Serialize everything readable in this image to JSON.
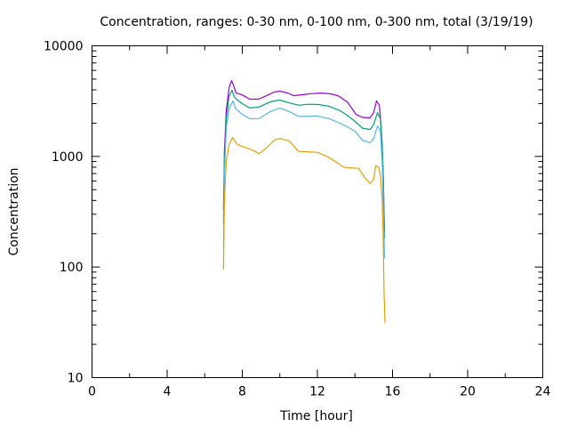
{
  "chart_data": {
    "type": "line",
    "title": "Concentration, ranges: 0-30 nm, 0-100 nm, 0-300 nm, total (3/19/19)",
    "xlabel": "Time [hour]",
    "ylabel": "Concentration",
    "xlim": [
      0,
      24
    ],
    "ylim": [
      10,
      10000
    ],
    "yscale": "log",
    "xticks": [
      "0",
      "4",
      "8",
      "12",
      "16",
      "20",
      "24"
    ],
    "yticks": [
      "10",
      "100",
      "1000",
      "10000"
    ],
    "grid": false,
    "legend": "none",
    "series": [
      {
        "name": "total",
        "color": "#9400d3",
        "points": [
          [
            7.0,
            330
          ],
          [
            7.05,
            1100
          ],
          [
            7.15,
            2600
          ],
          [
            7.3,
            4200
          ],
          [
            7.43,
            4850
          ],
          [
            7.55,
            4300
          ],
          [
            7.67,
            3740
          ],
          [
            8.0,
            3600
          ],
          [
            8.4,
            3290
          ],
          [
            8.85,
            3290
          ],
          [
            9.3,
            3550
          ],
          [
            9.7,
            3820
          ],
          [
            10.0,
            3890
          ],
          [
            10.4,
            3750
          ],
          [
            10.75,
            3540
          ],
          [
            11.2,
            3610
          ],
          [
            11.7,
            3700
          ],
          [
            12.2,
            3740
          ],
          [
            12.7,
            3680
          ],
          [
            13.1,
            3540
          ],
          [
            13.6,
            3100
          ],
          [
            14.06,
            2400
          ],
          [
            14.4,
            2250
          ],
          [
            14.8,
            2230
          ],
          [
            15.0,
            2500
          ],
          [
            15.15,
            3180
          ],
          [
            15.3,
            2900
          ],
          [
            15.4,
            1800
          ],
          [
            15.5,
            762
          ],
          [
            15.57,
            210
          ]
        ]
      },
      {
        "name": "0-300 nm",
        "color": "#009e73",
        "points": [
          [
            7.0,
            250
          ],
          [
            7.05,
            900
          ],
          [
            7.15,
            2200
          ],
          [
            7.3,
            3500
          ],
          [
            7.45,
            3960
          ],
          [
            7.6,
            3400
          ],
          [
            8.0,
            3000
          ],
          [
            8.4,
            2740
          ],
          [
            8.9,
            2800
          ],
          [
            9.5,
            3120
          ],
          [
            10.0,
            3230
          ],
          [
            10.5,
            3050
          ],
          [
            11.0,
            2900
          ],
          [
            11.5,
            2960
          ],
          [
            12.0,
            2950
          ],
          [
            12.6,
            2850
          ],
          [
            13.2,
            2600
          ],
          [
            13.6,
            2350
          ],
          [
            14.0,
            2070
          ],
          [
            14.4,
            1800
          ],
          [
            14.8,
            1750
          ],
          [
            15.0,
            1950
          ],
          [
            15.2,
            2490
          ],
          [
            15.35,
            2200
          ],
          [
            15.45,
            1300
          ],
          [
            15.52,
            500
          ],
          [
            15.57,
            180
          ]
        ]
      },
      {
        "name": "0-100 nm",
        "color": "#56b4e9",
        "points": [
          [
            7.0,
            150
          ],
          [
            7.05,
            700
          ],
          [
            7.15,
            1800
          ],
          [
            7.3,
            2700
          ],
          [
            7.5,
            3170
          ],
          [
            7.65,
            2700
          ],
          [
            8.0,
            2400
          ],
          [
            8.4,
            2190
          ],
          [
            8.9,
            2200
          ],
          [
            9.5,
            2550
          ],
          [
            10.0,
            2740
          ],
          [
            10.5,
            2550
          ],
          [
            11.0,
            2300
          ],
          [
            11.5,
            2300
          ],
          [
            12.0,
            2320
          ],
          [
            12.6,
            2200
          ],
          [
            13.2,
            2000
          ],
          [
            13.6,
            1850
          ],
          [
            14.0,
            1690
          ],
          [
            14.4,
            1400
          ],
          [
            14.8,
            1330
          ],
          [
            15.0,
            1450
          ],
          [
            15.2,
            1890
          ],
          [
            15.35,
            1700
          ],
          [
            15.45,
            900
          ],
          [
            15.52,
            300
          ],
          [
            15.57,
            120
          ]
        ]
      },
      {
        "name": "0-30 nm",
        "color": "#e69f00",
        "points": [
          [
            7.0,
            95
          ],
          [
            7.05,
            400
          ],
          [
            7.15,
            900
          ],
          [
            7.3,
            1300
          ],
          [
            7.5,
            1480
          ],
          [
            7.7,
            1300
          ],
          [
            8.0,
            1230
          ],
          [
            8.4,
            1170
          ],
          [
            8.9,
            1060
          ],
          [
            9.3,
            1200
          ],
          [
            9.7,
            1400
          ],
          [
            10.0,
            1460
          ],
          [
            10.5,
            1380
          ],
          [
            11.0,
            1110
          ],
          [
            11.5,
            1100
          ],
          [
            12.0,
            1090
          ],
          [
            12.5,
            1000
          ],
          [
            13.0,
            890
          ],
          [
            13.4,
            800
          ],
          [
            13.7,
            790
          ],
          [
            14.2,
            780
          ],
          [
            14.5,
            650
          ],
          [
            14.8,
            570
          ],
          [
            15.0,
            620
          ],
          [
            15.1,
            820
          ],
          [
            15.25,
            800
          ],
          [
            15.35,
            690
          ],
          [
            15.45,
            400
          ],
          [
            15.5,
            210
          ],
          [
            15.55,
            57
          ],
          [
            15.6,
            31
          ]
        ]
      }
    ]
  }
}
